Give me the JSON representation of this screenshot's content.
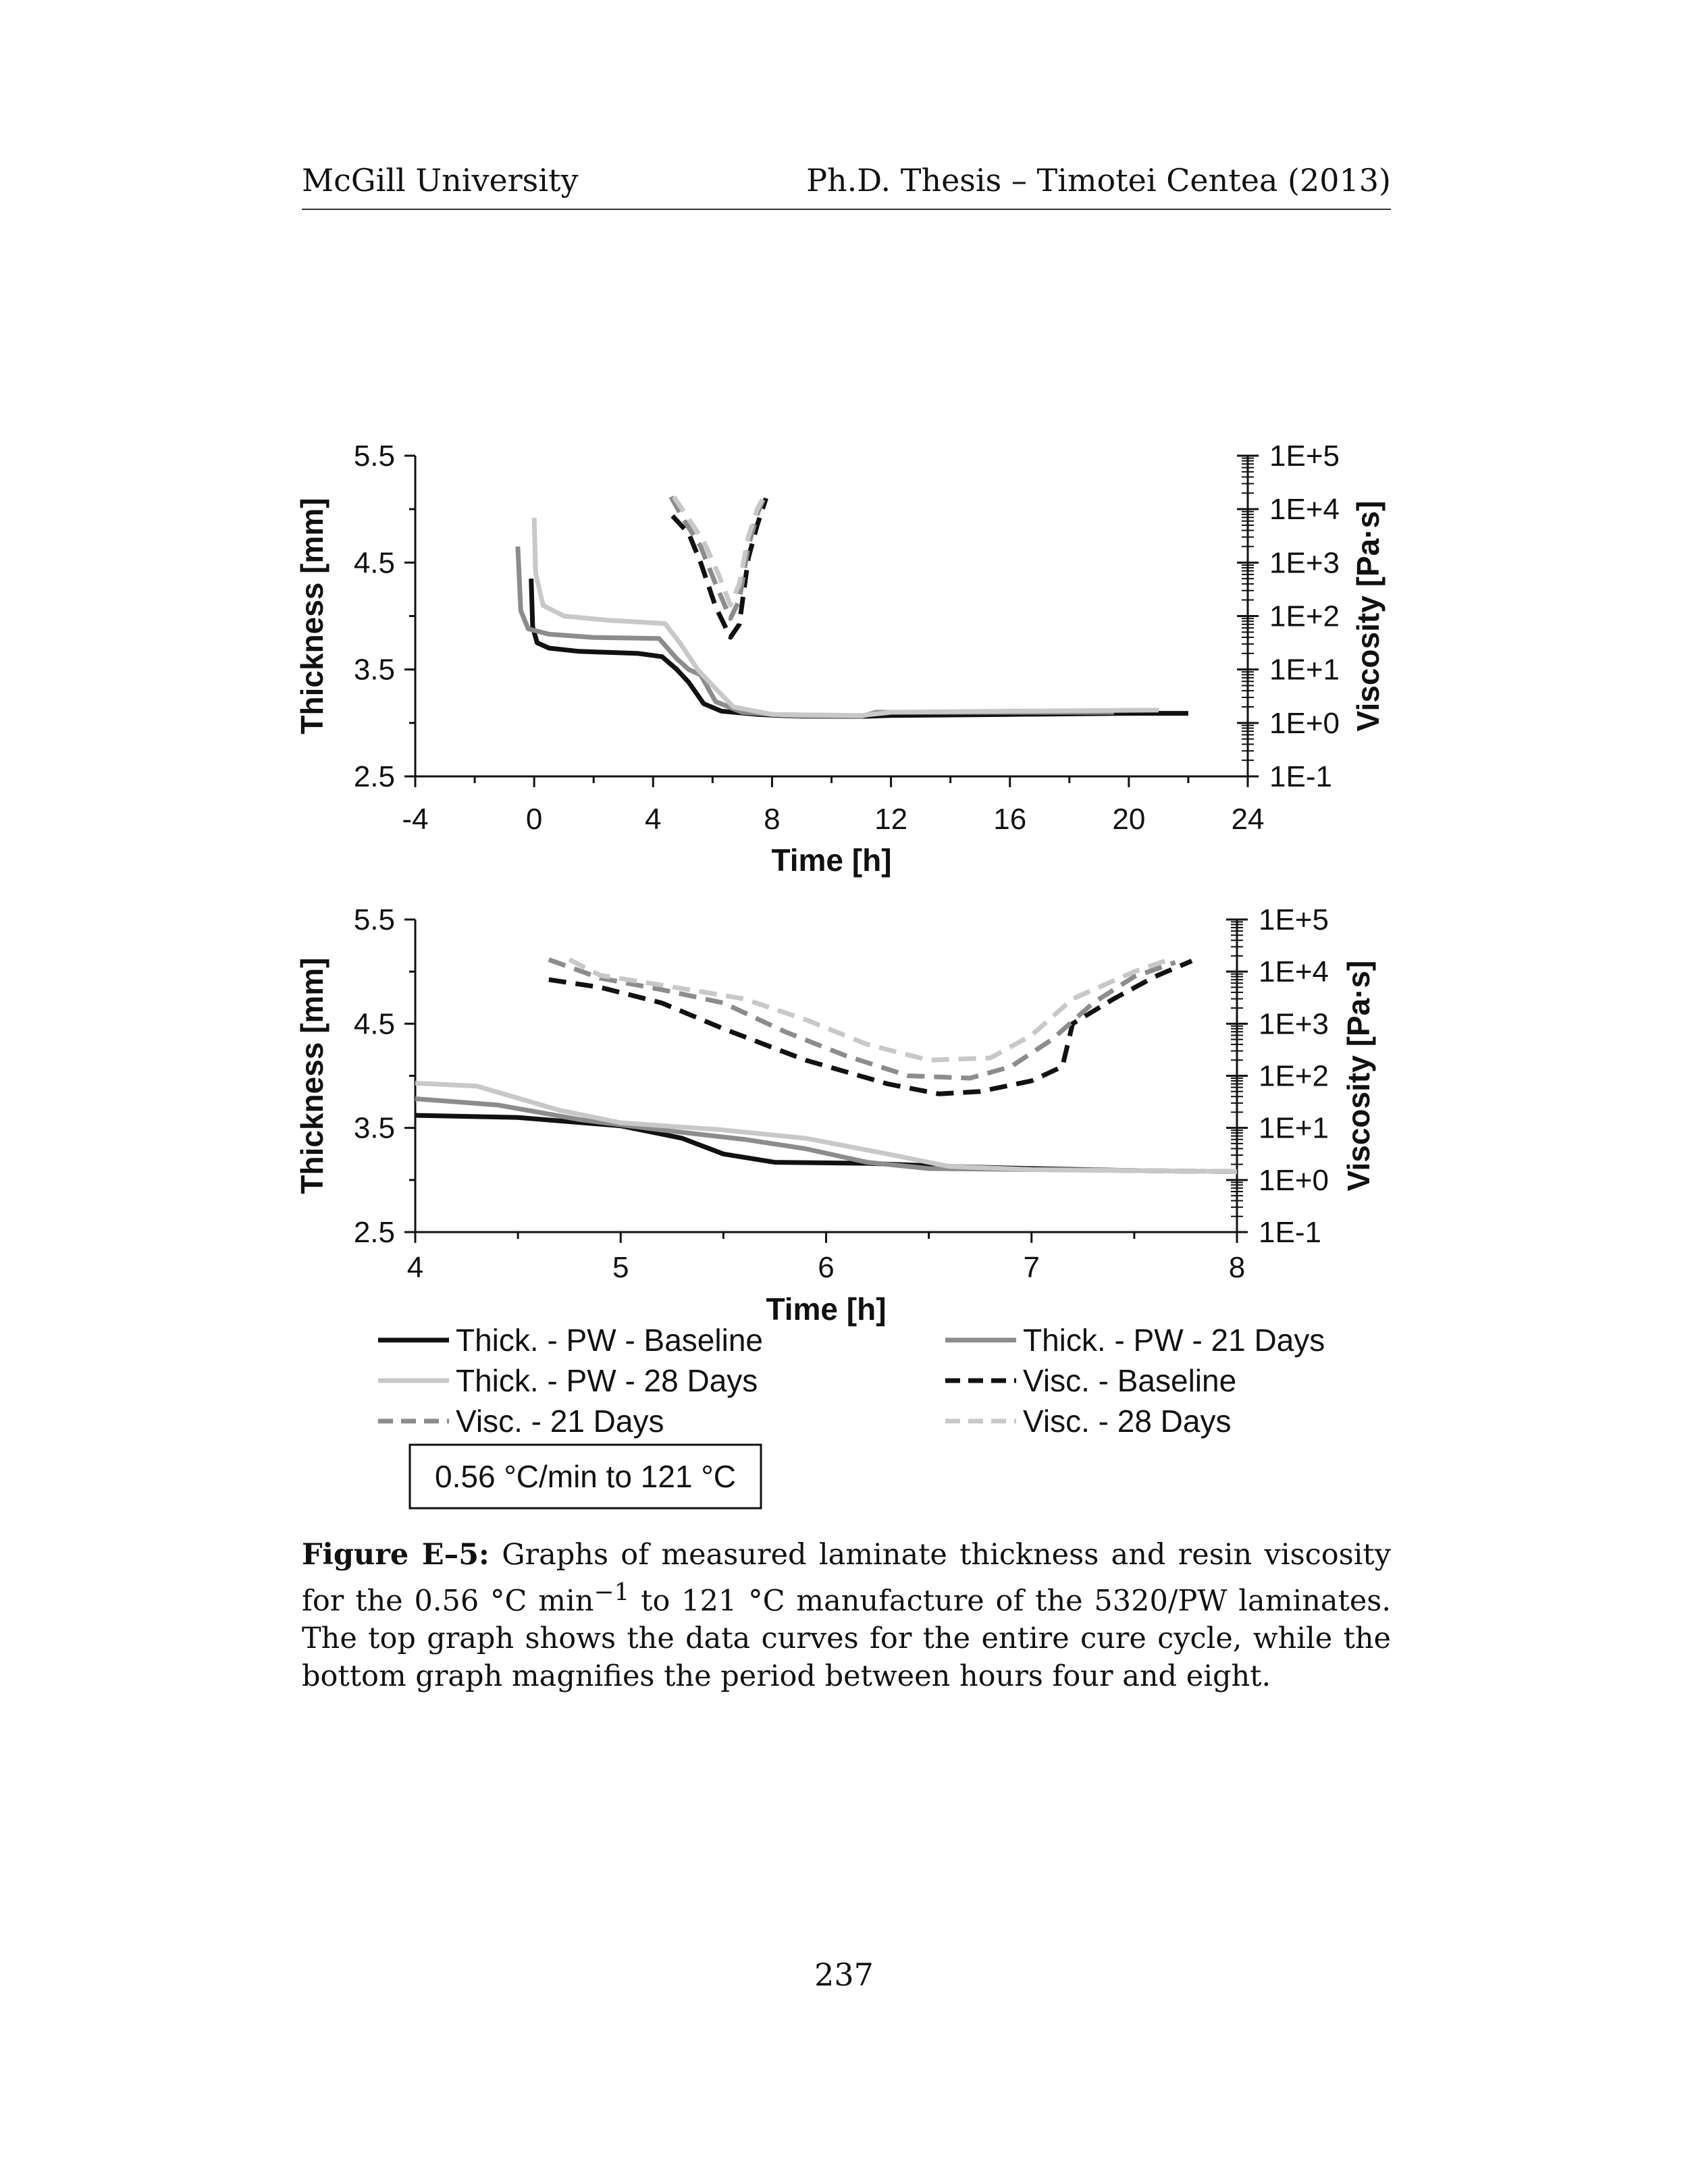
{
  "header": {
    "left": "McGill University",
    "right": "Ph.D. Thesis – Timotei Centea (2013)"
  },
  "caption": {
    "label": "Figure E–5:",
    "line1_rest": "Graphs of measured laminate thickness and resin viscosity for the",
    "line2_a": "0.56 °C min",
    "line2_sup": "−1",
    "line2_b": " to 121 °C manufacture of the 5320/PW laminates. The top graph",
    "line3": "shows the data curves for the entire cure cycle, while the bottom graph magnifies",
    "line4": "the period between hours four and eight."
  },
  "page_number": "237",
  "figure": {
    "condition_box": "0.56 °C/min to 121 °C",
    "legend": [
      {
        "label": "Thick. - PW - Baseline",
        "series": 0
      },
      {
        "label": "Thick. - PW - 21 Days",
        "series": 1
      },
      {
        "label": "Thick. - PW - 28 Days",
        "series": 2
      },
      {
        "label": "Visc. - Baseline",
        "series": 3
      },
      {
        "label": "Visc. - 21 Days",
        "series": 4
      },
      {
        "label": "Visc. - 28 Days",
        "series": 5
      }
    ]
  },
  "chart_data": [
    {
      "type": "line",
      "xlabel": "Time [h]",
      "ylabel": "Thickness [mm]",
      "y2label": "Viscosity [Pa·s]",
      "xlim": [
        -4,
        24
      ],
      "xticks": [
        -4,
        0,
        4,
        8,
        12,
        16,
        20,
        24
      ],
      "ylim": [
        2.5,
        5.5
      ],
      "yticks": [
        "2.5",
        "3.5",
        "4.5",
        "5.5"
      ],
      "y2scale": "log",
      "y2lim": [
        0.1,
        100000
      ],
      "y2ticks": [
        "1E-1",
        "1E+0",
        "1E+1",
        "1E+2",
        "1E+3",
        "1E+4",
        "1E+5"
      ],
      "series": [
        {
          "axis": "left",
          "color": "#111111",
          "dash": "solid",
          "points": [
            [
              -0.1,
              4.35
            ],
            [
              -0.05,
              3.9
            ],
            [
              0.1,
              3.75
            ],
            [
              0.5,
              3.7
            ],
            [
              1.5,
              3.67
            ],
            [
              3.5,
              3.65
            ],
            [
              4.3,
              3.62
            ],
            [
              4.8,
              3.5
            ],
            [
              5.2,
              3.38
            ],
            [
              5.7,
              3.18
            ],
            [
              6.3,
              3.11
            ],
            [
              7.5,
              3.08
            ],
            [
              9,
              3.06
            ],
            [
              11,
              3.06
            ],
            [
              12,
              3.07
            ],
            [
              16,
              3.08
            ],
            [
              20,
              3.09
            ],
            [
              22,
              3.09
            ]
          ]
        },
        {
          "axis": "left",
          "color": "#8c8c8c",
          "dash": "solid",
          "points": [
            [
              -0.55,
              4.65
            ],
            [
              -0.45,
              4.05
            ],
            [
              -0.2,
              3.88
            ],
            [
              0.5,
              3.83
            ],
            [
              2,
              3.8
            ],
            [
              4.2,
              3.79
            ],
            [
              4.8,
              3.6
            ],
            [
              5.2,
              3.5
            ],
            [
              5.6,
              3.45
            ],
            [
              6.1,
              3.2
            ],
            [
              7,
              3.1
            ],
            [
              9,
              3.06
            ],
            [
              11,
              3.06
            ],
            [
              11.5,
              3.1
            ],
            [
              12.5,
              3.1
            ],
            [
              16,
              3.1
            ],
            [
              19.5,
              3.1
            ]
          ]
        },
        {
          "axis": "left",
          "color": "#c8c8c8",
          "dash": "solid",
          "points": [
            [
              0,
              4.92
            ],
            [
              0.05,
              4.4
            ],
            [
              0.3,
              4.1
            ],
            [
              1,
              4.0
            ],
            [
              2.5,
              3.96
            ],
            [
              4.4,
              3.93
            ],
            [
              4.9,
              3.75
            ],
            [
              5.5,
              3.5
            ],
            [
              6,
              3.35
            ],
            [
              6.7,
              3.15
            ],
            [
              8,
              3.08
            ],
            [
              11,
              3.07
            ],
            [
              12,
              3.1
            ],
            [
              16,
              3.11
            ],
            [
              21,
              3.12
            ]
          ]
        },
        {
          "axis": "right",
          "color": "#111111",
          "dash": "dashed",
          "points": [
            [
              4.65,
              7500
            ],
            [
              5.2,
              3500
            ],
            [
              5.6,
              1000
            ],
            [
              6.1,
              150
            ],
            [
              6.6,
              40
            ],
            [
              6.9,
              70
            ],
            [
              7.2,
              1200
            ],
            [
              7.5,
              5000
            ],
            [
              7.8,
              16000
            ]
          ]
        },
        {
          "axis": "right",
          "color": "#8c8c8c",
          "dash": "dashed",
          "points": [
            [
              4.6,
              17000
            ],
            [
              5.1,
              5500
            ],
            [
              5.6,
              2000
            ],
            [
              6.1,
              400
            ],
            [
              6.6,
              90
            ],
            [
              6.9,
              200
            ],
            [
              7.2,
              2000
            ],
            [
              7.5,
              8000
            ],
            [
              7.7,
              15000
            ]
          ]
        },
        {
          "axis": "right",
          "color": "#c8c8c8",
          "dash": "dashed",
          "points": [
            [
              4.7,
              17000
            ],
            [
              5.2,
              6500
            ],
            [
              5.7,
              2500
            ],
            [
              6.2,
              600
            ],
            [
              6.6,
              160
            ],
            [
              6.9,
              400
            ],
            [
              7.2,
              3000
            ],
            [
              7.5,
              10000
            ],
            [
              7.7,
              16000
            ]
          ]
        }
      ]
    },
    {
      "type": "line",
      "xlabel": "Time [h]",
      "ylabel": "Thickness [mm]",
      "y2label": "Viscosity [Pa·s]",
      "xlim": [
        4,
        8
      ],
      "xticks": [
        4,
        5,
        6,
        7,
        8
      ],
      "ylim": [
        2.5,
        5.5
      ],
      "yticks": [
        "2.5",
        "3.5",
        "4.5",
        "5.5"
      ],
      "y2scale": "log",
      "y2lim": [
        0.1,
        100000
      ],
      "y2ticks": [
        "1E-1",
        "1E+0",
        "1E+1",
        "1E+2",
        "1E+3",
        "1E+4",
        "1E+5"
      ],
      "series": [
        {
          "axis": "left",
          "color": "#111111",
          "dash": "solid",
          "points": [
            [
              4,
              3.62
            ],
            [
              4.5,
              3.6
            ],
            [
              5,
              3.52
            ],
            [
              5.3,
              3.4
            ],
            [
              5.5,
              3.25
            ],
            [
              5.75,
              3.17
            ],
            [
              6.2,
              3.16
            ],
            [
              6.6,
              3.13
            ],
            [
              7,
              3.11
            ],
            [
              7.5,
              3.09
            ],
            [
              8,
              3.08
            ]
          ]
        },
        {
          "axis": "left",
          "color": "#8c8c8c",
          "dash": "solid",
          "points": [
            [
              4,
              3.78
            ],
            [
              4.4,
              3.72
            ],
            [
              4.8,
              3.58
            ],
            [
              5.2,
              3.48
            ],
            [
              5.6,
              3.39
            ],
            [
              5.9,
              3.3
            ],
            [
              6.2,
              3.17
            ],
            [
              6.5,
              3.11
            ],
            [
              7,
              3.1
            ],
            [
              7.5,
              3.09
            ],
            [
              8,
              3.08
            ]
          ]
        },
        {
          "axis": "left",
          "color": "#c8c8c8",
          "dash": "solid",
          "points": [
            [
              4,
              3.93
            ],
            [
              4.3,
              3.9
            ],
            [
              4.7,
              3.67
            ],
            [
              5,
              3.55
            ],
            [
              5.5,
              3.48
            ],
            [
              5.9,
              3.4
            ],
            [
              6.3,
              3.25
            ],
            [
              6.6,
              3.13
            ],
            [
              7,
              3.1
            ],
            [
              7.5,
              3.09
            ],
            [
              8,
              3.08
            ]
          ]
        },
        {
          "axis": "right",
          "color": "#111111",
          "dash": "dashed",
          "points": [
            [
              4.65,
              7000
            ],
            [
              4.9,
              5000
            ],
            [
              5.2,
              2500
            ],
            [
              5.5,
              800
            ],
            [
              5.9,
              200
            ],
            [
              6.3,
              70
            ],
            [
              6.55,
              45
            ],
            [
              6.75,
              50
            ],
            [
              7,
              80
            ],
            [
              7.15,
              150
            ],
            [
              7.2,
              1000
            ],
            [
              7.4,
              3000
            ],
            [
              7.6,
              8000
            ],
            [
              7.78,
              16000
            ]
          ]
        },
        {
          "axis": "right",
          "color": "#8c8c8c",
          "dash": "dashed",
          "points": [
            [
              4.65,
              17000
            ],
            [
              4.9,
              7500
            ],
            [
              5.2,
              4500
            ],
            [
              5.5,
              2500
            ],
            [
              5.8,
              700
            ],
            [
              6.1,
              240
            ],
            [
              6.4,
              100
            ],
            [
              6.7,
              90
            ],
            [
              6.9,
              150
            ],
            [
              7.1,
              500
            ],
            [
              7.3,
              2500
            ],
            [
              7.5,
              8000
            ],
            [
              7.7,
              15000
            ]
          ]
        },
        {
          "axis": "right",
          "color": "#c8c8c8",
          "dash": "dashed",
          "points": [
            [
              4.75,
              17000
            ],
            [
              4.9,
              8500
            ],
            [
              5.2,
              5500
            ],
            [
              5.6,
              3000
            ],
            [
              5.9,
              1200
            ],
            [
              6.2,
              400
            ],
            [
              6.5,
              200
            ],
            [
              6.8,
              220
            ],
            [
              7,
              600
            ],
            [
              7.2,
              3000
            ],
            [
              7.5,
              10000
            ],
            [
              7.65,
              16000
            ]
          ]
        }
      ]
    }
  ]
}
